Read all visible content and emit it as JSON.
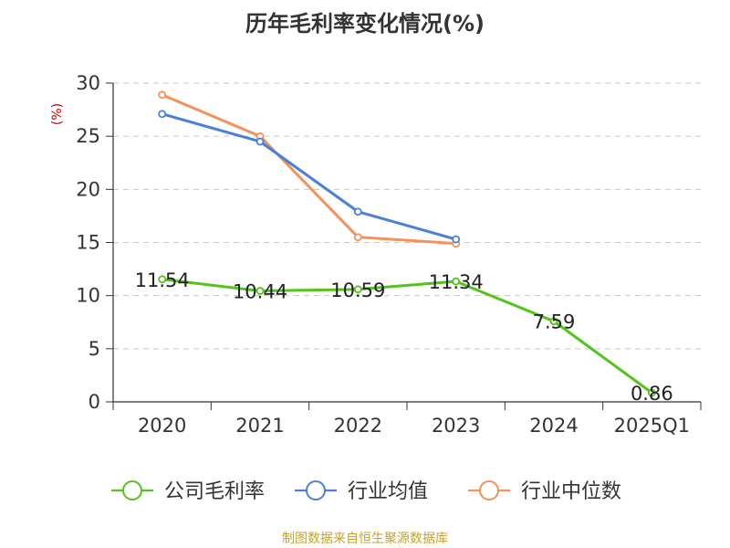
{
  "title": "历年毛利率变化情况(%)",
  "source_note": "制图数据来自恒生聚源数据库",
  "chart_data": {
    "type": "line",
    "title": "历年毛利率变化情况(%)",
    "ylabel": "(%)",
    "xlabel": "",
    "categories": [
      "2020",
      "2021",
      "2022",
      "2023",
      "2024",
      "2025Q1"
    ],
    "ylim": [
      0,
      30
    ],
    "yticks": [
      "0",
      "5",
      "10",
      "15",
      "20",
      "25",
      "30"
    ],
    "grid": "horizontal dashed",
    "legend_position": "bottom",
    "series": [
      {
        "name": "公司毛利率",
        "color": "#52c41a",
        "values": [
          11.54,
          10.44,
          10.59,
          11.34,
          7.59,
          0.86
        ],
        "labels": [
          "11.54",
          "10.44",
          "10.59",
          "11.34",
          "7.59",
          "0.86"
        ]
      },
      {
        "name": "行业均值",
        "color": "#4a7fdc",
        "values": [
          27.1,
          24.5,
          17.9,
          15.3,
          null,
          null
        ]
      },
      {
        "name": "行业中位数",
        "color": "#f5915a",
        "values": [
          28.9,
          25.0,
          15.5,
          14.9,
          null,
          null
        ]
      }
    ]
  }
}
